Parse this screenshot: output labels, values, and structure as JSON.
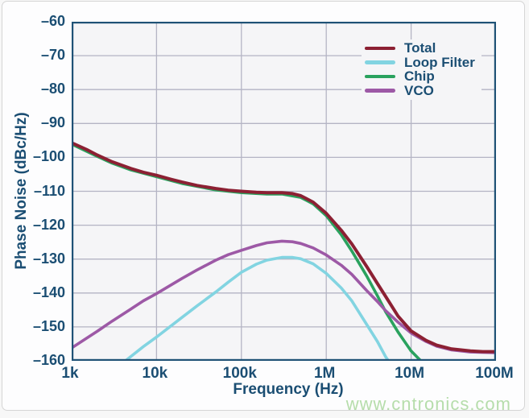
{
  "watermark": {
    "text": "www.cntronics.com",
    "color": "#b6ddab"
  },
  "style": {
    "plot_bg": "#f5f5f7",
    "grid_color": "#b4b4c4",
    "frame_color": "#1f5276",
    "label_color": "#1b4e73",
    "card_border": "#d5d5d5"
  },
  "chart_data": {
    "type": "line",
    "title": "",
    "xlabel": "Frequency (Hz)",
    "ylabel": "Phase Noise (dBc/Hz)",
    "x_scale": "log",
    "x_min_hz": 1000,
    "x_max_hz": 100000000,
    "x_tick_labels": [
      "1k",
      "10k",
      "100k",
      "1M",
      "10M",
      "100M"
    ],
    "ylim": [
      -160,
      -60
    ],
    "y_tick_step": 10,
    "y_tick_labels": [
      "–60",
      "–70",
      "–80",
      "–90",
      "–100",
      "–110",
      "–120",
      "–130",
      "–140",
      "–150",
      "–160"
    ],
    "grid": true,
    "legend_position": "upper-right",
    "legend_order": [
      "Total",
      "Loop Filter",
      "Chip",
      "VCO"
    ],
    "draw_order": [
      "Loop Filter",
      "Chip",
      "VCO",
      "Total"
    ],
    "series": [
      {
        "name": "Total",
        "color": "#8c2033",
        "width": 4,
        "points": [
          [
            1000,
            -95.7
          ],
          [
            1500,
            -97.7
          ],
          [
            2000,
            -99.3
          ],
          [
            3000,
            -101.3
          ],
          [
            5000,
            -103.3
          ],
          [
            7000,
            -104.4
          ],
          [
            10000,
            -105.3
          ],
          [
            15000,
            -106.5
          ],
          [
            20000,
            -107.3
          ],
          [
            30000,
            -108.3
          ],
          [
            50000,
            -109.2
          ],
          [
            70000,
            -109.7
          ],
          [
            100000,
            -110.0
          ],
          [
            150000,
            -110.3
          ],
          [
            200000,
            -110.4
          ],
          [
            300000,
            -110.4
          ],
          [
            400000,
            -110.7
          ],
          [
            500000,
            -111.3
          ],
          [
            700000,
            -113.2
          ],
          [
            1000000,
            -116.5
          ],
          [
            1500000,
            -121.5
          ],
          [
            2000000,
            -125.5
          ],
          [
            3000000,
            -132.2
          ],
          [
            4000000,
            -137.2
          ],
          [
            5000000,
            -141.0
          ],
          [
            7000000,
            -146.8
          ],
          [
            10000000,
            -151.2
          ],
          [
            15000000,
            -154.0
          ],
          [
            20000000,
            -155.4
          ],
          [
            30000000,
            -156.5
          ],
          [
            50000000,
            -157.1
          ],
          [
            70000000,
            -157.3
          ],
          [
            100000000,
            -157.3
          ]
        ]
      },
      {
        "name": "Loop Filter",
        "color": "#82d4e1",
        "width": 3.6,
        "points": [
          [
            4300,
            -160
          ],
          [
            5000,
            -158.7
          ],
          [
            7000,
            -155.8
          ],
          [
            10000,
            -153.0
          ],
          [
            15000,
            -149.6
          ],
          [
            20000,
            -147.2
          ],
          [
            30000,
            -143.8
          ],
          [
            50000,
            -139.7
          ],
          [
            70000,
            -136.8
          ],
          [
            100000,
            -133.9
          ],
          [
            150000,
            -131.5
          ],
          [
            200000,
            -130.3
          ],
          [
            300000,
            -129.5
          ],
          [
            400000,
            -129.5
          ],
          [
            500000,
            -129.9
          ],
          [
            700000,
            -131.4
          ],
          [
            1000000,
            -134.2
          ],
          [
            1500000,
            -138.5
          ],
          [
            2000000,
            -142.3
          ],
          [
            3000000,
            -149.3
          ],
          [
            4000000,
            -154.3
          ],
          [
            5000000,
            -158.8
          ],
          [
            5400000,
            -160
          ]
        ]
      },
      {
        "name": "Chip",
        "color": "#2aa25e",
        "width": 3.6,
        "points": [
          [
            1000,
            -96.1
          ],
          [
            2000,
            -99.7
          ],
          [
            3000,
            -101.7
          ],
          [
            5000,
            -103.7
          ],
          [
            10000,
            -105.7
          ],
          [
            20000,
            -107.7
          ],
          [
            50000,
            -109.6
          ],
          [
            100000,
            -110.4
          ],
          [
            200000,
            -110.8
          ],
          [
            300000,
            -110.8
          ],
          [
            500000,
            -111.8
          ],
          [
            700000,
            -113.7
          ],
          [
            1000000,
            -117.2
          ],
          [
            1500000,
            -122.8
          ],
          [
            2000000,
            -127.6
          ],
          [
            3000000,
            -135.0
          ],
          [
            4000000,
            -140.8
          ],
          [
            5000000,
            -145.5
          ],
          [
            7000000,
            -151.5
          ],
          [
            10000000,
            -157.1
          ],
          [
            13000000,
            -160
          ]
        ]
      },
      {
        "name": "VCO",
        "color": "#9d59a6",
        "width": 3.6,
        "points": [
          [
            1000,
            -156.2
          ],
          [
            2000,
            -151.3
          ],
          [
            3000,
            -148.3
          ],
          [
            5000,
            -144.7
          ],
          [
            7000,
            -142.3
          ],
          [
            10000,
            -140.2
          ],
          [
            20000,
            -135.7
          ],
          [
            30000,
            -133.2
          ],
          [
            50000,
            -130.3
          ],
          [
            70000,
            -128.7
          ],
          [
            100000,
            -127.4
          ],
          [
            150000,
            -126.0
          ],
          [
            200000,
            -125.2
          ],
          [
            300000,
            -124.7
          ],
          [
            400000,
            -124.9
          ],
          [
            500000,
            -125.4
          ],
          [
            700000,
            -126.7
          ],
          [
            1000000,
            -128.8
          ],
          [
            1500000,
            -131.8
          ],
          [
            2000000,
            -134.5
          ],
          [
            3000000,
            -139.3
          ],
          [
            4000000,
            -142.5
          ],
          [
            5000000,
            -145.2
          ],
          [
            7000000,
            -148.6
          ],
          [
            10000000,
            -151.8
          ],
          [
            15000000,
            -154.3
          ],
          [
            20000000,
            -155.7
          ],
          [
            30000000,
            -156.8
          ],
          [
            50000000,
            -157.4
          ],
          [
            100000000,
            -157.6
          ]
        ]
      }
    ]
  }
}
